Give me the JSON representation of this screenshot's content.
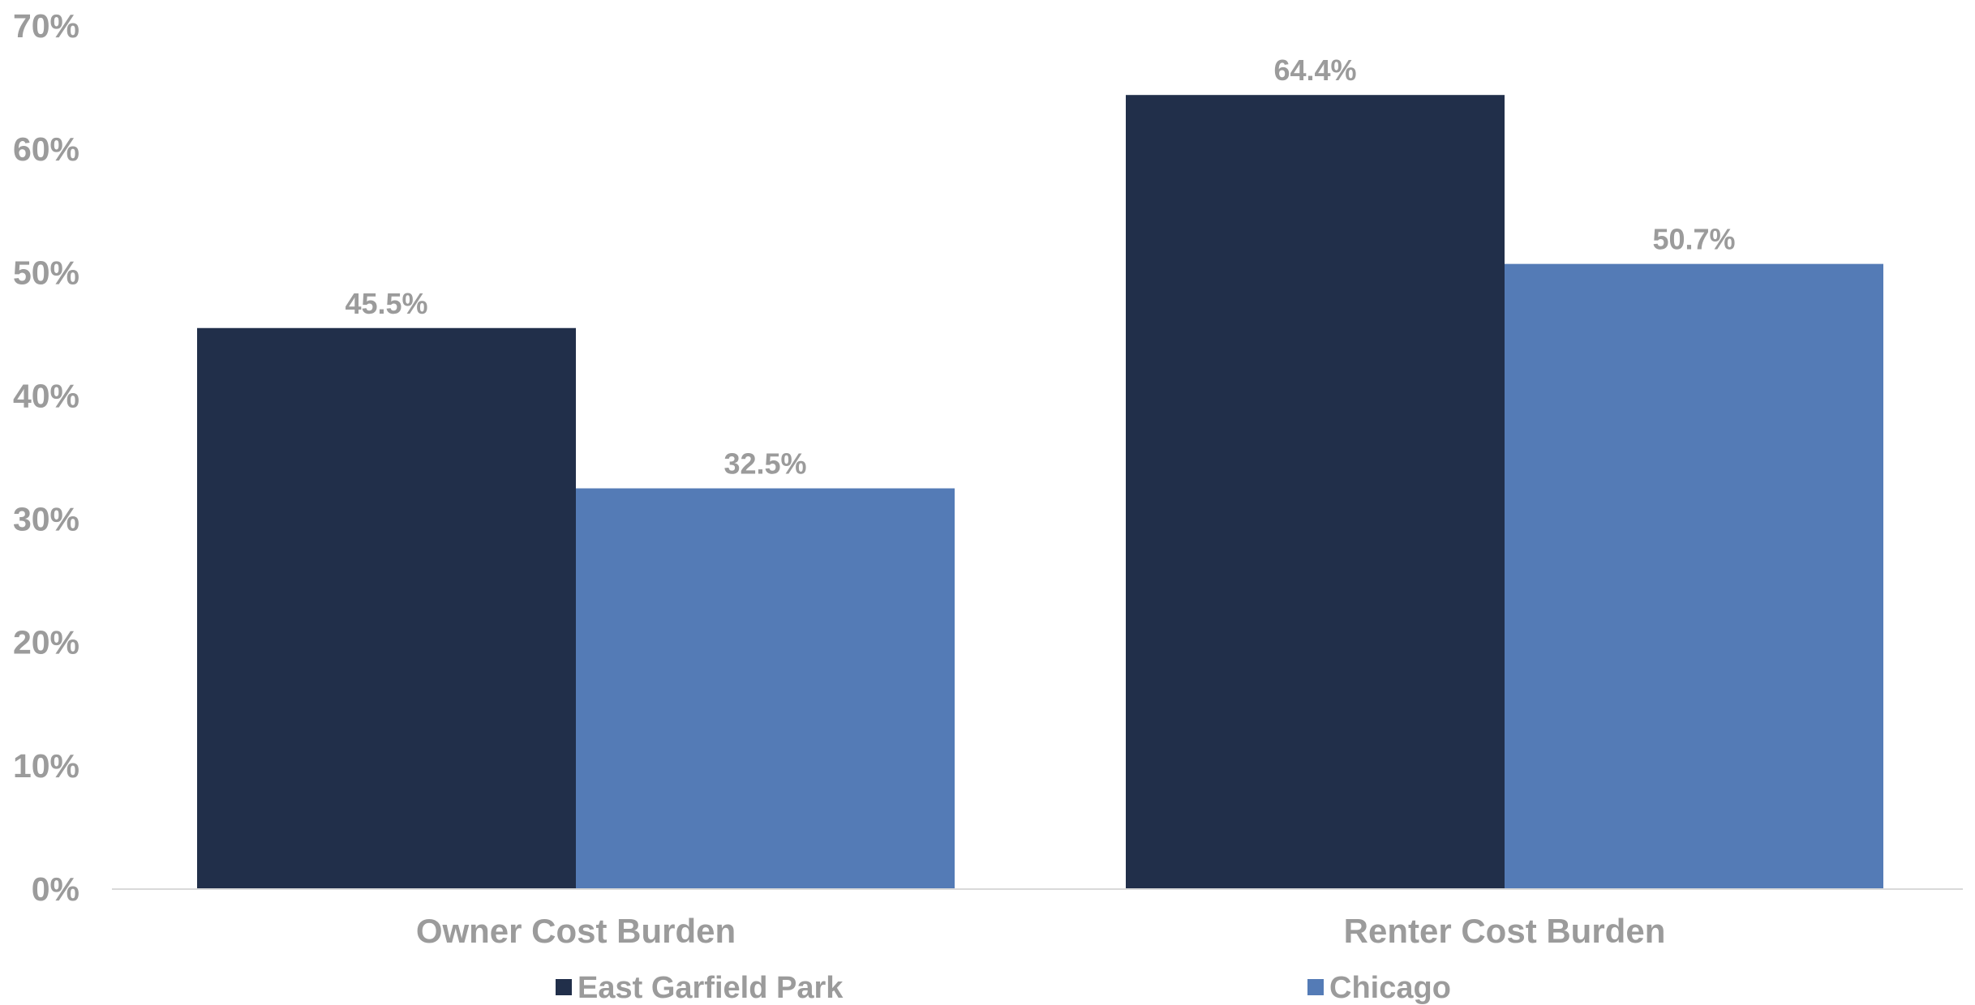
{
  "chart_data": {
    "type": "bar",
    "categories": [
      "Owner Cost Burden",
      "Renter Cost Burden"
    ],
    "series": [
      {
        "name": "East Garfield Park",
        "values": [
          45.5,
          64.4
        ],
        "labels": [
          "45.5%",
          "64.4%"
        ],
        "color": "#212f4a"
      },
      {
        "name": "Chicago",
        "values": [
          32.5,
          50.7
        ],
        "labels": [
          "32.5%",
          "50.7%"
        ],
        "color": "#547bb6"
      }
    ],
    "ylim": [
      0,
      70
    ],
    "yticks": [
      0,
      10,
      20,
      30,
      40,
      50,
      60,
      70
    ],
    "ytick_labels": [
      "0%",
      "10%",
      "20%",
      "30%",
      "40%",
      "50%",
      "60%",
      "70%"
    ],
    "title": "",
    "xlabel": "",
    "ylabel": "",
    "grid": false,
    "legend_position": "bottom",
    "colors": {
      "axis": "#d9d9d9",
      "text": "#9b9b9b"
    }
  }
}
